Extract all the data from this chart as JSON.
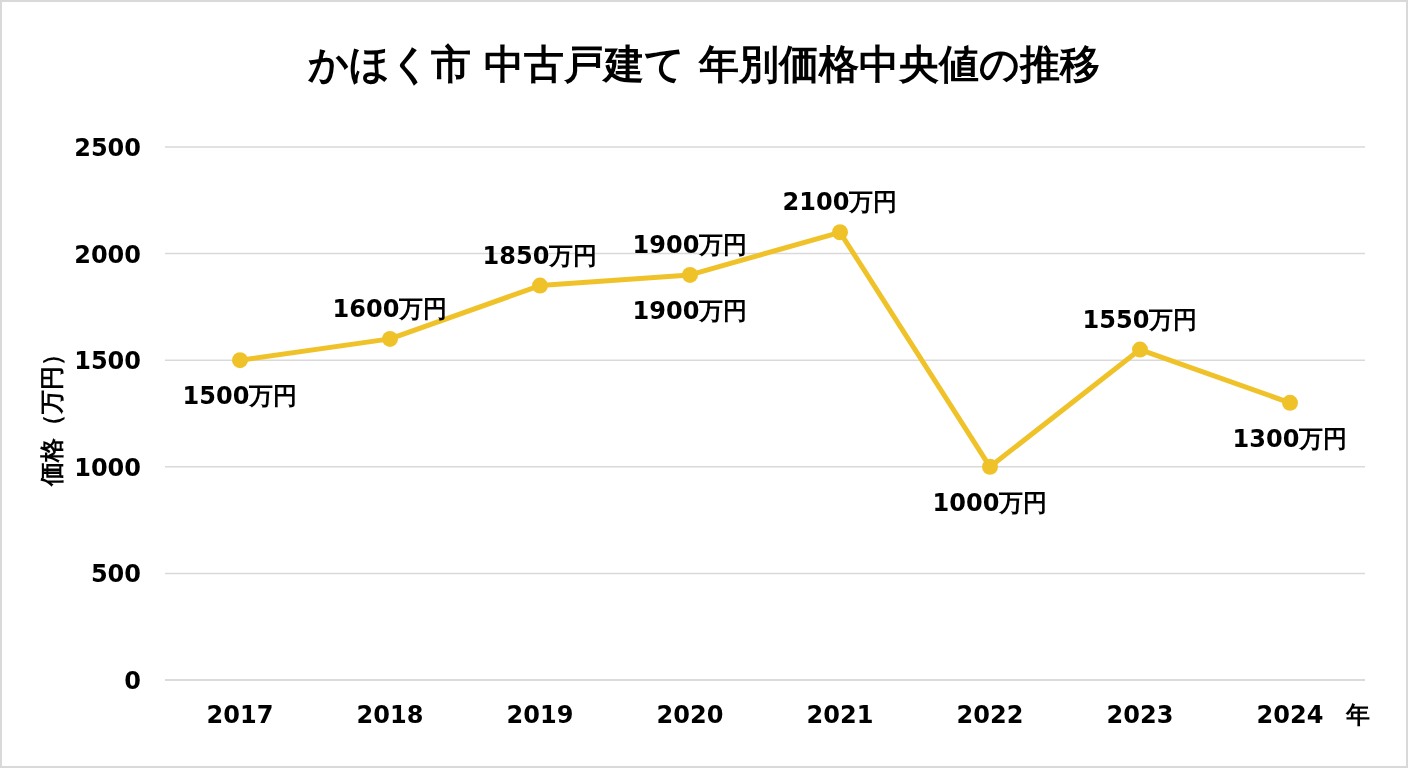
{
  "chart_data": {
    "type": "line",
    "title": "かほく市 中古戸建て 年別価格中央値の推移",
    "ylabel": "価格（万円）",
    "xlabel": "年",
    "categories": [
      "2017",
      "2018",
      "2019",
      "2020",
      "2021",
      "2022",
      "2023",
      "2024"
    ],
    "series": [
      {
        "color": "#f0c22a",
        "values": [
          1500,
          1600,
          1850,
          1900,
          2100,
          1000,
          1550,
          1300
        ],
        "value_labels": [
          "1500万円",
          "1600万円",
          "1850万円",
          "1900万円",
          "2100万円",
          "1000万円",
          "1550万円",
          "1300万円"
        ]
      }
    ],
    "annotations": [
      {
        "text": "1900万円",
        "x": "2020",
        "y": 1900
      }
    ],
    "ylim": [
      0,
      2500
    ],
    "yticks": [
      0,
      500,
      1000,
      1500,
      2000,
      2500
    ],
    "grid": "y",
    "marker": "circle",
    "line_style": "solid"
  }
}
